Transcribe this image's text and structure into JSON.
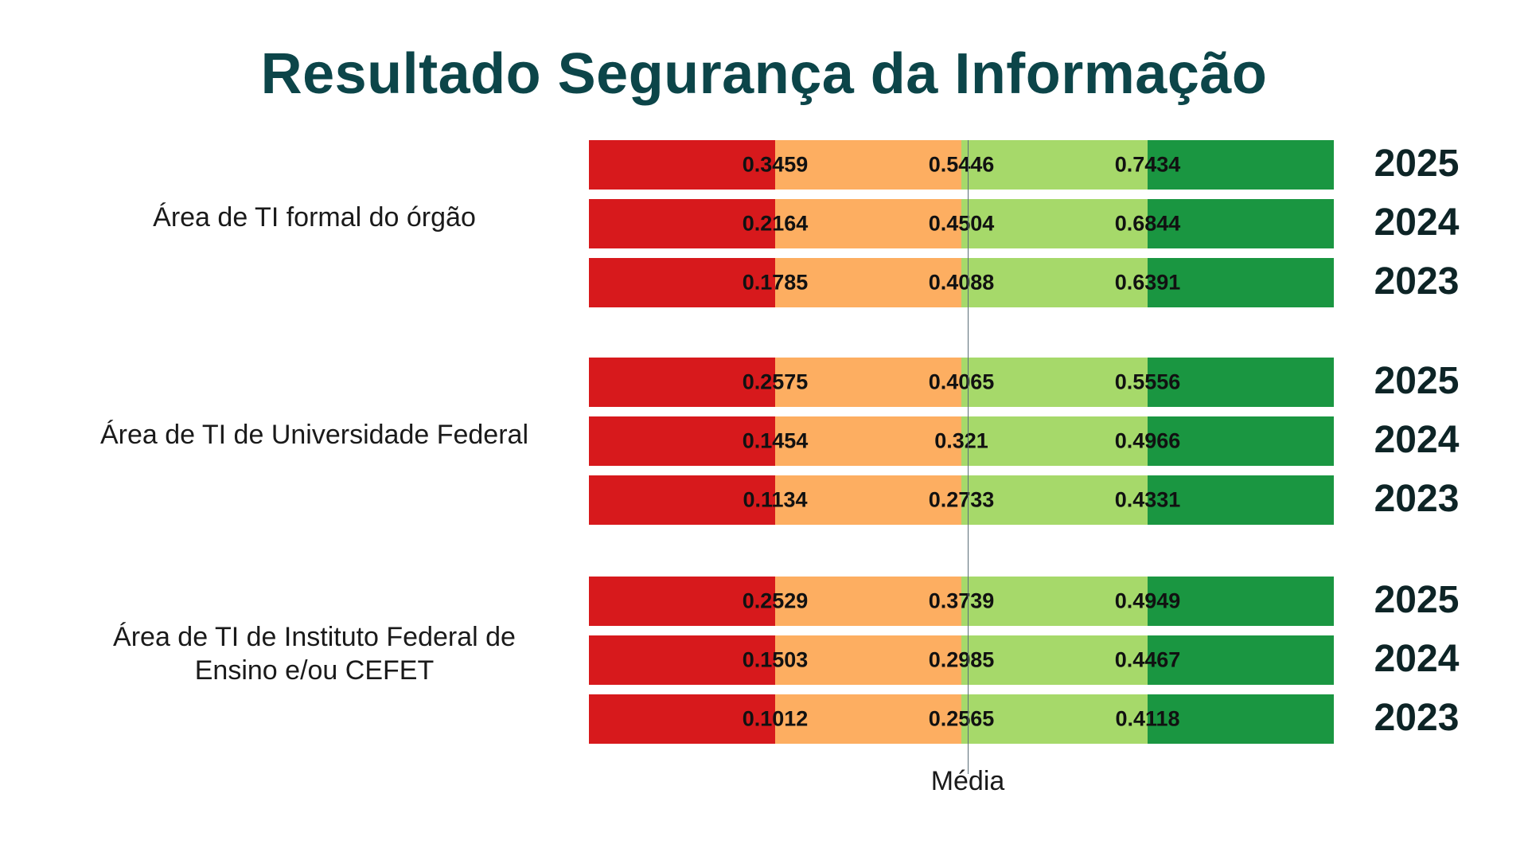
{
  "chart_data": {
    "type": "bar",
    "title": "Resultado Segurança da Informação",
    "reference_line_label": "Média",
    "segment_colors": [
      "#d7191c",
      "#fdae61",
      "#a6d96a",
      "#1a9641"
    ],
    "groups": [
      {
        "label": "Área de TI formal do órgão",
        "rows": [
          {
            "year": "2025",
            "values": [
              "0.3459",
              "0.5446",
              "0.7434"
            ]
          },
          {
            "year": "2024",
            "values": [
              "0.2164",
              "0.4504",
              "0.6844"
            ]
          },
          {
            "year": "2023",
            "values": [
              "0.1785",
              "0.4088",
              "0.6391"
            ]
          }
        ]
      },
      {
        "label": "Área de TI de Universidade Federal",
        "rows": [
          {
            "year": "2025",
            "values": [
              "0.2575",
              "0.4065",
              "0.5556"
            ]
          },
          {
            "year": "2024",
            "values": [
              "0.1454",
              "0.321",
              "0.4966"
            ]
          },
          {
            "year": "2023",
            "values": [
              "0.1134",
              "0.2733",
              "0.4331"
            ]
          }
        ]
      },
      {
        "label": "Área de TI de Instituto Federal de Ensino e/ou CEFET",
        "rows": [
          {
            "year": "2025",
            "values": [
              "0.2529",
              "0.3739",
              "0.4949"
            ]
          },
          {
            "year": "2024",
            "values": [
              "0.1503",
              "0.2985",
              "0.4467"
            ]
          },
          {
            "year": "2023",
            "values": [
              "0.1012",
              "0.2565",
              "0.4118"
            ]
          }
        ]
      }
    ]
  }
}
